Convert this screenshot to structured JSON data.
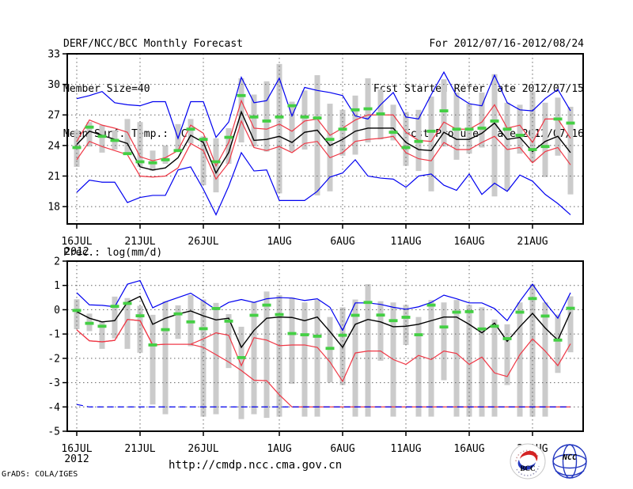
{
  "header": {
    "title": "DERF/NCC/BCC Monthly Forecast",
    "member_size": "Member Size=40",
    "for_period": "For 2012/07/16-2012/08/24",
    "fcst_refer": "Fcst Started Refer Date 2012/07/15",
    "fcst_produced": "Fcst Produced Date 2012/07/16"
  },
  "footer": {
    "url": "http://cmdp.ncc.cma.gov.cn",
    "credit": "GrADS: COLA/IGES",
    "bcc_logo_text": "BCC",
    "ncc_logo_text": "NCC"
  },
  "colors": {
    "blue": "#0000f0",
    "red": "#ef3745",
    "black": "#000000",
    "marker": "#44cf44",
    "bar": "#cbcbcb",
    "grid": "#666666",
    "logo_blue": "#2438c0",
    "logo_red": "#d42222",
    "logo_navy": "#1a2f7a"
  },
  "chart_data": [
    {
      "type": "line",
      "title": "Mean Surf. Temp.: °C",
      "x_tick_labels": [
        "16JUL",
        "21JUL",
        "26JUL",
        "1AUG",
        "6AUG",
        "11AUG",
        "16AUG",
        "21AUG"
      ],
      "x_tick_days": [
        0,
        5,
        10,
        16,
        21,
        26,
        31,
        36
      ],
      "x_year_label": "2012",
      "y_tick_values": [
        33,
        30,
        27,
        24,
        21,
        18
      ],
      "grid_values": [
        30,
        27,
        24,
        21,
        18
      ],
      "ylim": [
        16.3,
        33
      ],
      "grid": true,
      "legend": "none",
      "series": [
        {
          "name": "ensemble-max",
          "color": "blue",
          "values": [
            28.6,
            28.9,
            29.3,
            28.2,
            28.0,
            27.9,
            28.3,
            28.3,
            24.7,
            28.3,
            28.3,
            24.8,
            26.3,
            30.7,
            28.2,
            28.4,
            30.6,
            26.9,
            29.7,
            29.4,
            29.2,
            28.9,
            26.9,
            26.6,
            28.0,
            29.2,
            26.8,
            26.6,
            29.0,
            31.2,
            28.9,
            28.1,
            27.9,
            30.9,
            28.2,
            27.5,
            27.4,
            28.6,
            29.5,
            27.4
          ]
        },
        {
          "name": "upper-quartile",
          "color": "red",
          "values": [
            24.4,
            26.5,
            26.0,
            25.7,
            25.3,
            22.9,
            22.5,
            22.8,
            23.5,
            26.0,
            25.2,
            22.0,
            24.3,
            28.4,
            25.7,
            25.6,
            26.1,
            25.4,
            26.4,
            26.6,
            25.0,
            25.7,
            26.5,
            27.0,
            27.0,
            27.0,
            25.3,
            24.5,
            24.4,
            26.3,
            25.6,
            25.6,
            26.3,
            28.0,
            25.7,
            26.0,
            24.3,
            26.6,
            26.6,
            24.7
          ]
        },
        {
          "name": "ensemble-mean",
          "color": "black",
          "values": [
            24.1,
            25.4,
            25.0,
            24.6,
            24.2,
            21.9,
            21.6,
            21.8,
            22.8,
            25.0,
            24.3,
            21.3,
            23.3,
            27.3,
            24.5,
            24.6,
            24.9,
            24.3,
            25.3,
            25.5,
            24.0,
            24.6,
            25.4,
            25.7,
            25.7,
            25.7,
            24.3,
            23.6,
            23.5,
            25.3,
            24.6,
            24.6,
            25.2,
            26.2,
            24.6,
            24.8,
            23.4,
            24.4,
            24.9,
            23.3
          ]
        },
        {
          "name": "lower-quartile",
          "color": "red",
          "values": [
            22.6,
            24.4,
            23.9,
            23.5,
            23.1,
            21.0,
            20.9,
            21.0,
            21.8,
            24.2,
            23.5,
            20.7,
            22.3,
            26.4,
            23.8,
            23.5,
            23.9,
            23.3,
            24.2,
            24.4,
            22.8,
            23.3,
            24.4,
            24.6,
            24.7,
            24.9,
            23.3,
            22.7,
            22.5,
            24.3,
            23.6,
            23.6,
            24.3,
            24.9,
            23.6,
            23.8,
            22.3,
            23.4,
            23.8,
            22.1
          ]
        },
        {
          "name": "ensemble-min",
          "color": "blue",
          "values": [
            19.4,
            20.6,
            20.4,
            20.4,
            18.4,
            18.9,
            19.1,
            19.1,
            21.6,
            21.9,
            19.7,
            17.2,
            20.0,
            23.3,
            21.5,
            21.6,
            18.6,
            18.6,
            18.6,
            19.5,
            20.9,
            21.3,
            22.6,
            21.0,
            20.8,
            20.7,
            19.9,
            21.0,
            21.2,
            20.1,
            19.6,
            21.2,
            19.2,
            20.3,
            19.5,
            21.1,
            20.5,
            19.2,
            18.3,
            17.2
          ]
        }
      ],
      "bars": {
        "name": "member-spread-bar",
        "top": [
          25.5,
          26.3,
          26.0,
          25.5,
          26.6,
          26.3,
          23.5,
          24.0,
          26.1,
          26.6,
          24.9,
          24.7,
          25.7,
          30.6,
          29.0,
          30.3,
          32.0,
          28.3,
          29.4,
          30.9,
          28.1,
          27.5,
          28.9,
          30.6,
          29.5,
          28.0,
          27.3,
          27.5,
          28.8,
          30.5,
          29.2,
          28.1,
          29.2,
          31.0,
          28.2,
          28.0,
          29.3,
          28.2,
          28.7,
          27.8
        ],
        "bottom": [
          21.9,
          23.9,
          23.3,
          23.6,
          23.2,
          21.9,
          21.5,
          22.2,
          23.5,
          24.2,
          20.1,
          19.4,
          22.2,
          24.3,
          23.9,
          23.4,
          19.3,
          23.4,
          23.6,
          19.1,
          19.5,
          23.0,
          23.1,
          24.3,
          24.6,
          24.5,
          22.0,
          21.5,
          19.5,
          23.9,
          22.6,
          23.2,
          23.8,
          19.0,
          19.6,
          23.2,
          22.4,
          20.9,
          23.0,
          19.2
        ]
      },
      "markers": {
        "name": "observation-marker",
        "values": [
          23.8,
          25.8,
          24.9,
          24.5,
          23.2,
          22.4,
          22.3,
          22.6,
          23.5,
          25.6,
          24.6,
          22.4,
          24.8,
          28.9,
          26.8,
          26.4,
          26.8,
          27.9,
          26.8,
          26.7,
          24.6,
          25.6,
          27.5,
          27.6,
          27.1,
          25.3,
          23.8,
          24.4,
          25.4,
          27.4,
          25.6,
          25.6,
          25.7,
          26.4,
          25.6,
          25.0,
          23.6,
          23.9,
          26.6,
          26.2
        ]
      }
    },
    {
      "type": "line",
      "title": "Prec.: log(mm/d)",
      "x_tick_labels": [
        "16JUL",
        "21JUL",
        "26JUL",
        "1AUG",
        "6AUG",
        "11AUG",
        "16AUG",
        "21AUG"
      ],
      "x_tick_days": [
        0,
        5,
        10,
        16,
        21,
        26,
        31,
        36
      ],
      "x_year_label": "2012",
      "y_tick_values": [
        2,
        1,
        0,
        -1,
        -2,
        -3,
        -4,
        -5
      ],
      "grid_values": [
        1,
        0,
        -1,
        -2,
        -3,
        -4
      ],
      "ylim": [
        -5,
        2
      ],
      "grid": true,
      "legend": "none",
      "series": [
        {
          "name": "ensemble-max",
          "color": "blue",
          "values": [
            0.7,
            0.2,
            0.18,
            0.12,
            1.05,
            1.2,
            0.08,
            0.32,
            0.5,
            0.68,
            0.35,
            0.0,
            0.3,
            0.42,
            0.3,
            0.45,
            0.5,
            0.48,
            0.38,
            0.45,
            0.1,
            -0.85,
            0.28,
            0.28,
            0.22,
            0.1,
            0.02,
            0.12,
            0.3,
            0.6,
            0.45,
            0.28,
            0.28,
            0.05,
            -0.45,
            0.35,
            1.05,
            0.3,
            -0.35,
            0.7
          ]
        },
        {
          "name": "ensemble-mean",
          "color": "black",
          "values": [
            -0.08,
            -0.35,
            -0.5,
            -0.45,
            0.3,
            0.55,
            -0.6,
            -0.35,
            -0.18,
            -0.05,
            -0.25,
            -0.42,
            -0.35,
            -1.55,
            -0.85,
            -0.35,
            -0.3,
            -0.32,
            -0.45,
            -0.3,
            -0.9,
            -1.55,
            -0.6,
            -0.4,
            -0.5,
            -0.7,
            -0.68,
            -0.6,
            -0.45,
            -0.3,
            -0.3,
            -0.6,
            -0.95,
            -0.55,
            -1.3,
            -0.7,
            -0.15,
            -0.75,
            -1.25,
            -0.1
          ]
        },
        {
          "name": "upper-quartile",
          "color": "red",
          "values": [
            -0.83,
            -1.28,
            -1.32,
            -1.26,
            -0.4,
            -0.45,
            -1.45,
            -1.42,
            -1.42,
            -1.42,
            -1.2,
            -0.95,
            -1.05,
            -2.3,
            -1.15,
            -1.25,
            -1.48,
            -1.45,
            -1.45,
            -1.55,
            -2.15,
            -2.95,
            -1.78,
            -1.7,
            -1.7,
            -2.05,
            -2.25,
            -1.88,
            -2.05,
            -1.7,
            -1.8,
            -2.25,
            -1.95,
            -2.6,
            -2.75,
            -1.85,
            -1.2,
            -1.7,
            -2.3,
            -1.4
          ]
        },
        {
          "name": "lower-quartile",
          "color": "red",
          "values": [
            -0.83,
            -1.28,
            -1.32,
            -1.26,
            -0.4,
            -0.45,
            -1.45,
            -1.42,
            -1.42,
            -1.42,
            -1.55,
            -1.85,
            -2.15,
            -2.5,
            -2.9,
            -2.92,
            -3.5,
            -4.0,
            -4.0,
            -4.0,
            -4.0,
            -4.0,
            -4.0,
            -4.0,
            -4.0,
            -4.0,
            -4.0,
            -4.0,
            -4.0,
            -4.0,
            -4.0,
            -4.0,
            -4.0,
            -4.0,
            -4.0,
            -4.0,
            -4.0,
            -4.0,
            -4.0,
            -4.0
          ]
        },
        {
          "name": "ensemble-min",
          "color": "blue",
          "style": "dashed",
          "values": [
            -3.9,
            -4.0,
            -4.0,
            -4.0,
            -4.0,
            -4.0,
            -4.0,
            -4.0,
            -4.0,
            -4.0,
            -4.0,
            -4.0,
            -4.0,
            -4.0,
            -4.0,
            -4.0,
            -4.0,
            -4.0,
            -4.0,
            -4.0,
            -4.0,
            -4.0,
            -4.0,
            -4.0,
            -4.0,
            -4.0,
            -4.0,
            -4.0,
            -4.0,
            -4.0,
            -4.0,
            -4.0,
            -4.0,
            -4.0,
            -4.0,
            -4.0,
            -4.0,
            -4.0,
            -4.0,
            -4.0
          ]
        }
      ],
      "bars": {
        "name": "member-spread-bar",
        "top": [
          0.43,
          -0.16,
          -0.48,
          0.54,
          0.48,
          0.16,
          -0.21,
          0.35,
          0.18,
          0.6,
          0.42,
          0.28,
          -0.18,
          -0.7,
          0.3,
          0.75,
          0.6,
          0.5,
          0.3,
          0.4,
          -0.3,
          0.1,
          0.42,
          1.05,
          0.35,
          0.3,
          0.2,
          -0.3,
          0.4,
          0.3,
          0.4,
          0.2,
          0.1,
          -0.4,
          -0.6,
          0.3,
          1.05,
          0.3,
          -0.2,
          0.55
        ],
        "bottom": [
          -0.8,
          -0.88,
          -1.61,
          -1.18,
          -1.61,
          -1.77,
          -3.9,
          -4.3,
          -1.2,
          -1.5,
          -4.4,
          -4.3,
          -2.4,
          -4.5,
          -4.3,
          -4.45,
          -4.4,
          -3.05,
          -4.4,
          -4.4,
          -3.0,
          -3.1,
          -4.4,
          -4.4,
          -2.1,
          -4.4,
          -1.45,
          -4.4,
          -4.4,
          -2.9,
          -4.4,
          -4.4,
          -4.4,
          -4.4,
          -3.1,
          -4.4,
          -4.4,
          -4.4,
          -2.6,
          -1.75
        ]
      },
      "markers": {
        "name": "observation-marker",
        "values": [
          -0.03,
          -0.56,
          -0.68,
          0.14,
          0.26,
          -0.25,
          -1.45,
          -0.82,
          -0.17,
          -0.5,
          -0.78,
          0.05,
          -0.47,
          -1.97,
          -0.23,
          0.19,
          -0.2,
          -0.98,
          -1.03,
          -1.09,
          -1.59,
          -1.05,
          -0.23,
          0.3,
          -0.22,
          -0.45,
          -0.31,
          -1.03,
          0.19,
          -0.71,
          -0.1,
          -0.08,
          -0.79,
          -0.68,
          -1.19,
          -0.1,
          0.46,
          -0.26,
          -1.25,
          0.06
        ]
      }
    }
  ]
}
